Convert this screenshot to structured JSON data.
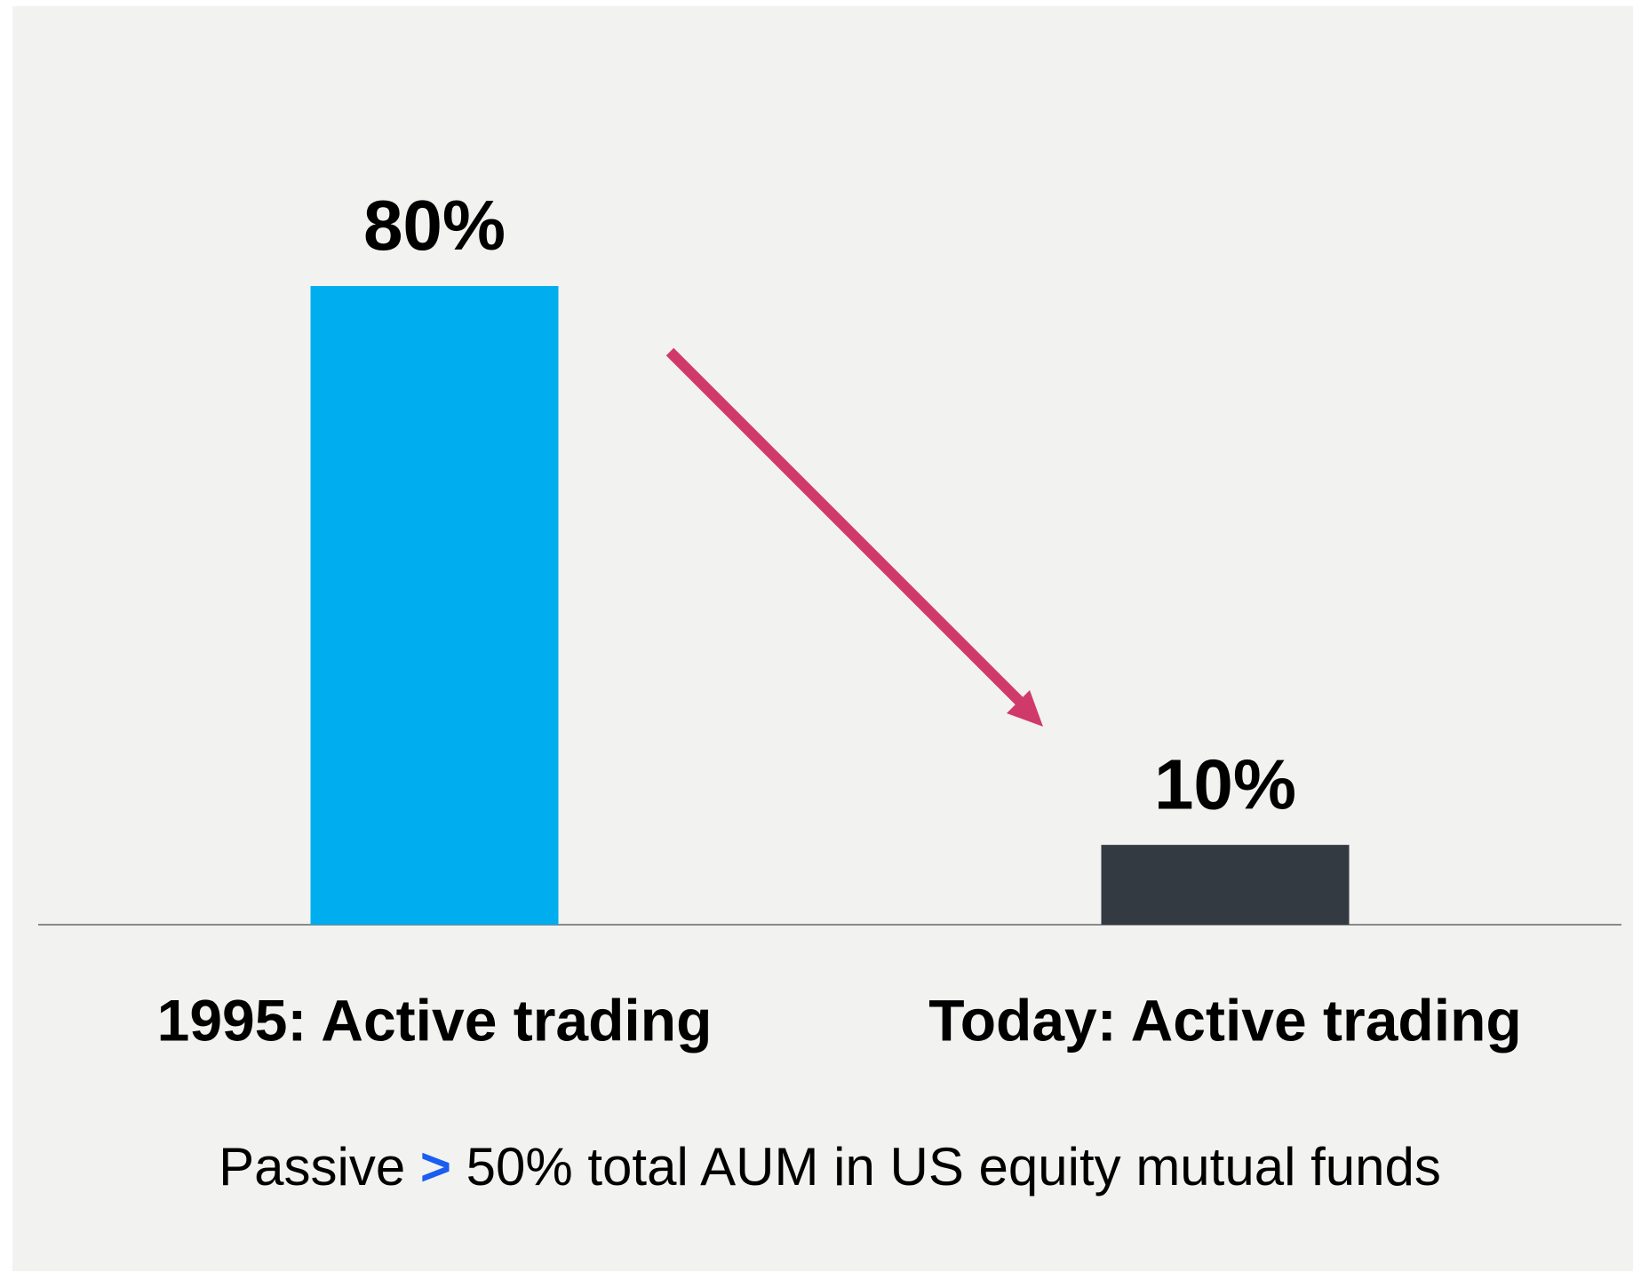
{
  "chart_data": {
    "type": "bar",
    "categories": [
      "1995: Active trading",
      "Today: Active trading"
    ],
    "values": [
      80,
      10
    ],
    "value_labels": [
      "80%",
      "10%"
    ],
    "colors": [
      "#00aeef",
      "#343a42"
    ],
    "footnote": [
      "Passive",
      ">",
      "50% total AUM in US equity mutual funds"
    ]
  }
}
